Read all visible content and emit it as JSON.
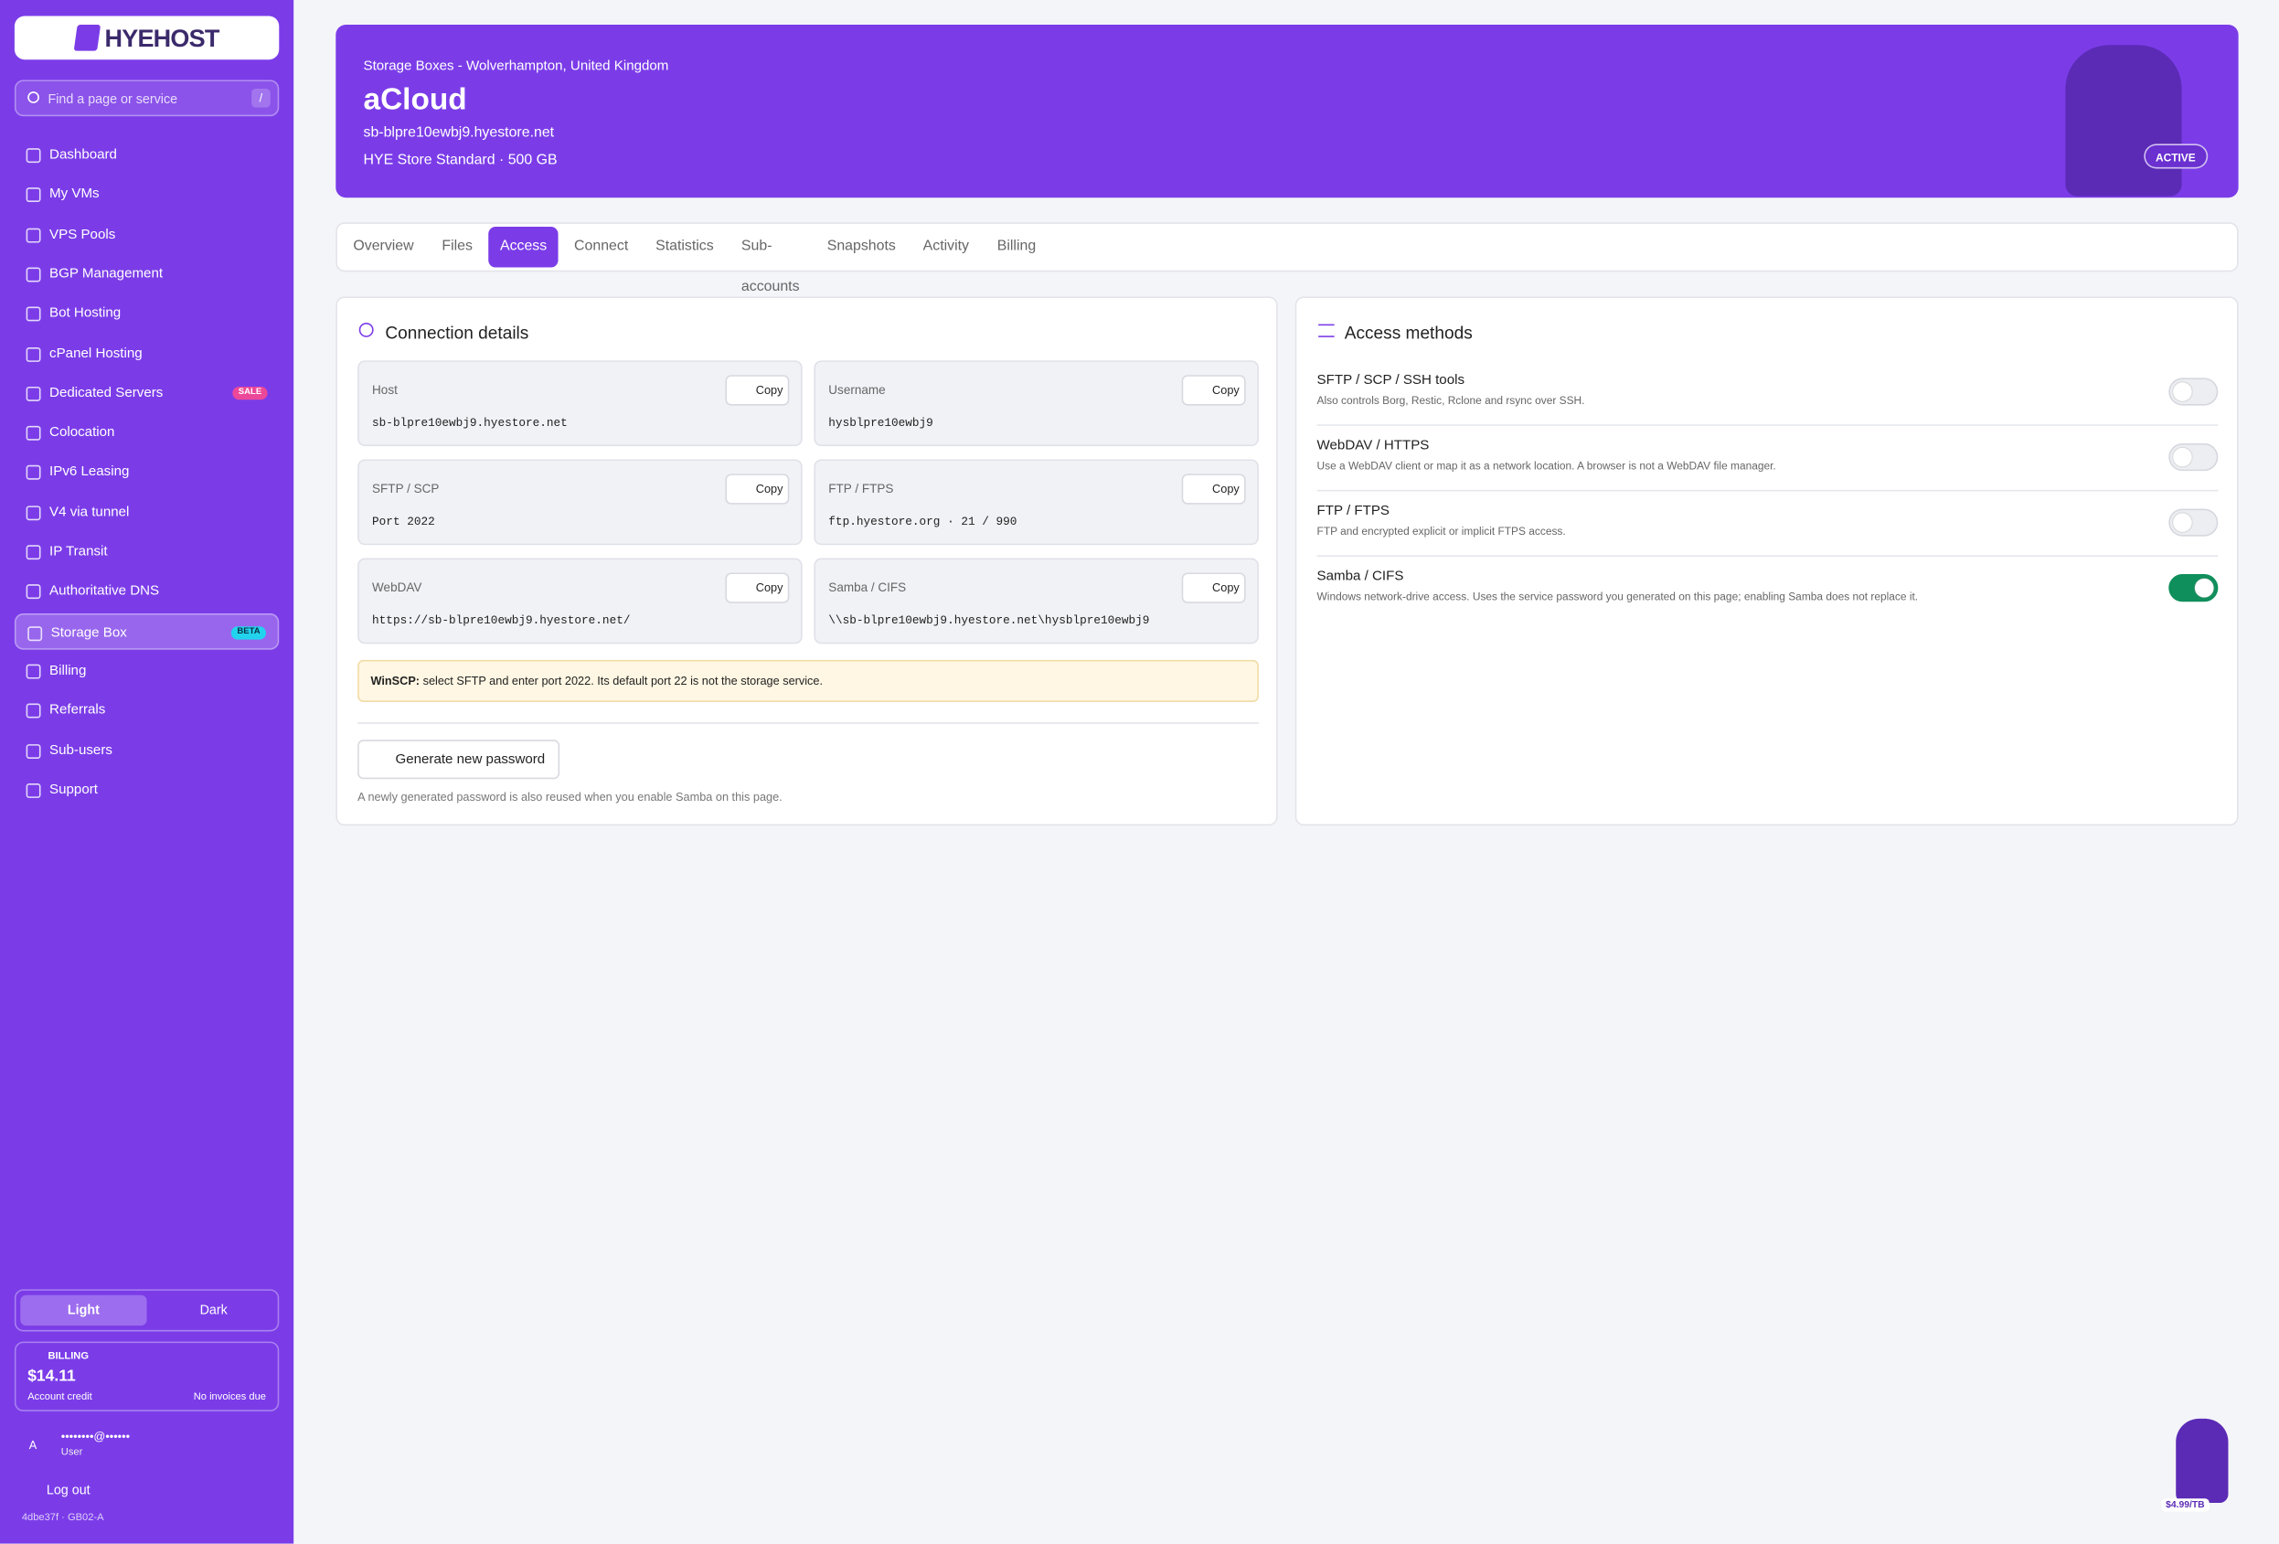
{
  "sidebar": {
    "logo": "HYEHOST",
    "search_placeholder": "Find a page or service",
    "search_shortcut": "/",
    "nav": [
      {
        "label": "Dashboard"
      },
      {
        "label": "My VMs"
      },
      {
        "label": "VPS Pools"
      },
      {
        "label": "BGP Management"
      },
      {
        "label": "Bot Hosting"
      },
      {
        "label": "cPanel Hosting"
      },
      {
        "label": "Dedicated Servers",
        "badge": "SALE"
      },
      {
        "label": "Colocation"
      },
      {
        "label": "IPv6 Leasing"
      },
      {
        "label": "V4 via tunnel"
      },
      {
        "label": "IP Transit"
      },
      {
        "label": "Authoritative DNS"
      },
      {
        "label": "Storage Box",
        "badge": "BETA",
        "active": true
      },
      {
        "label": "Billing"
      },
      {
        "label": "Referrals"
      },
      {
        "label": "Sub-users"
      },
      {
        "label": "Support"
      }
    ],
    "theme": {
      "light": "Light",
      "dark": "Dark"
    },
    "billing": {
      "label": "BILLING",
      "amount": "$14.11",
      "credit": "Account credit",
      "invoices": "No invoices due"
    },
    "user": {
      "avatar": "A",
      "email": "••••••••@••••••",
      "role": "User"
    },
    "logout": "Log out",
    "build": "4dbe37f · GB02-A"
  },
  "header": {
    "location": "Storage Boxes - Wolverhampton, United Kingdom",
    "name": "aCloud",
    "host": "sb-blpre10ewbj9.hyestore.net",
    "plan": "HYE Store Standard · 500 GB",
    "status": "ACTIVE"
  },
  "tabs": [
    {
      "label": "Overview"
    },
    {
      "label": "Files"
    },
    {
      "label": "Access",
      "active": true
    },
    {
      "label": "Connect"
    },
    {
      "label": "Statistics"
    },
    {
      "label": "Sub-accounts"
    },
    {
      "label": "Snapshots"
    },
    {
      "label": "Activity"
    },
    {
      "label": "Billing"
    }
  ],
  "connection": {
    "title": "Connection details",
    "fields": [
      {
        "label": "Host",
        "value": "sb-blpre10ewbj9.hyestore.net",
        "action": "Copy"
      },
      {
        "label": "Username",
        "value": "hysblpre10ewbj9",
        "action": "Copy"
      },
      {
        "label": "SFTP / SCP",
        "value": "Port 2022",
        "action": "Copy"
      },
      {
        "label": "FTP / FTPS",
        "value": "ftp.hyestore.org · 21 / 990",
        "action": "Copy"
      },
      {
        "label": "WebDAV",
        "value": "https://sb-blpre10ewbj9.hyestore.net/",
        "action": "Copy"
      },
      {
        "label": "Samba / CIFS",
        "value": "\\\\sb-blpre10ewbj9.hyestore.net\\hysblpre10ewbj9",
        "action": "Copy"
      }
    ],
    "notice": {
      "strong": "WinSCP:",
      "text": "select SFTP and enter port 2022. Its default port 22 is not the storage service."
    },
    "button": "Generate new password",
    "note": "A newly generated password is also reused when you enable Samba on this page."
  },
  "access": {
    "title": "Access methods",
    "methods": [
      {
        "name": "SFTP / SCP / SSH tools",
        "description": "Also controls Borg, Restic, Rclone and rsync over SSH.",
        "enabled": false
      },
      {
        "name": "WebDAV / HTTPS",
        "description": "Use a WebDAV client or map it as a network location. A browser is not a WebDAV file manager.",
        "enabled": false
      },
      {
        "name": "FTP / FTPS",
        "description": "FTP and encrypted explicit or implicit FTPS access.",
        "enabled": false
      },
      {
        "name": "Samba / CIFS",
        "description": "Windows network-drive access. Uses the service password you generated on this page; enabling Samba does not replace it.",
        "enabled": true
      }
    ]
  },
  "promo": {
    "price": "$4.99/TB"
  }
}
